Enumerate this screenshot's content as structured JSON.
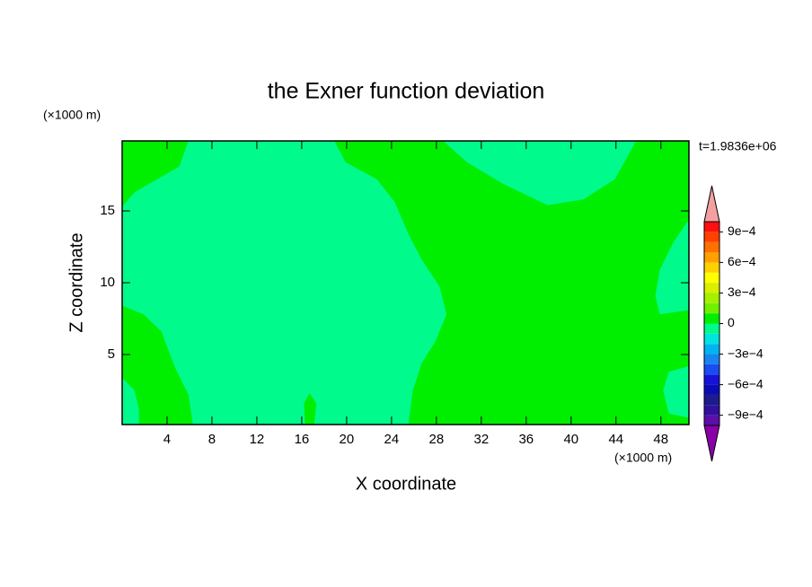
{
  "chart_data": {
    "type": "contour",
    "title": "the Exner function deviation",
    "x_label": "X coordinate",
    "y_label": "Z coordinate",
    "x_unit": "(×1000 m)",
    "y_unit": "(×1000 m)",
    "annotation": "t=1.9836e+06",
    "xlim": [
      0,
      50.5
    ],
    "ylim": [
      0.125,
      19.875
    ],
    "xticks": [
      4,
      8,
      12,
      16,
      20,
      24,
      28,
      32,
      36,
      40,
      44,
      48
    ],
    "yticks": [
      5,
      10,
      15
    ],
    "levels": [
      -0.001,
      -0.0009,
      -0.0008,
      -0.0007,
      -0.0006,
      -0.0005,
      -0.0004,
      -0.0003,
      -0.0002,
      -0.0001,
      0,
      0.0001,
      0.0002,
      0.0003,
      0.0004,
      0.0005,
      0.0006,
      0.0007,
      0.0008,
      0.0009,
      0.001
    ],
    "colors": [
      "#5a10a8",
      "#30109c",
      "#1c1c8c",
      "#0c0cb4",
      "#1414d8",
      "#1a4cf0",
      "#1a84f0",
      "#00b4f0",
      "#00e4e0",
      "#00fa8c",
      "#00ee00",
      "#70f000",
      "#a4f000",
      "#d8f000",
      "#ffff00",
      "#ffd000",
      "#ffa000",
      "#ff7000",
      "#ff4000",
      "#ff1010"
    ],
    "extend_colors": [
      "#8a00a8",
      "#f4a0a0"
    ],
    "colorbar_ticks": [
      {
        "value": -0.0009,
        "label": "−9e−4"
      },
      {
        "value": -0.0006,
        "label": "−6e−4"
      },
      {
        "value": -0.0003,
        "label": "−3e−4"
      },
      0,
      {
        "value": 0.0003,
        "label": "3e−4"
      },
      {
        "value": 0.0006,
        "label": "6e−4"
      },
      {
        "value": 0.0009,
        "label": "9e−4"
      }
    ],
    "background_range": [
      0,
      0.0001
    ],
    "regions": [
      {
        "range": [
          -0.0001,
          0
        ],
        "points": [
          [
            5.9,
            19.875
          ],
          [
            18.9,
            19.875
          ],
          [
            19.9,
            18.4
          ],
          [
            22.7,
            17.2
          ],
          [
            24.3,
            15.6
          ],
          [
            25.5,
            13.4
          ],
          [
            26.7,
            11.6
          ],
          [
            28.3,
            9.7
          ],
          [
            28.9,
            7.8
          ],
          [
            27.9,
            5.9
          ],
          [
            26.7,
            4.4
          ],
          [
            25.9,
            2.5
          ],
          [
            25.5,
            0.125
          ],
          [
            6.3,
            0.125
          ],
          [
            5.9,
            2.2
          ],
          [
            4.7,
            4.1
          ],
          [
            3.5,
            6.6
          ],
          [
            1.9,
            7.8
          ],
          [
            0,
            8.4
          ],
          [
            0,
            15.3
          ],
          [
            1.1,
            16.3
          ],
          [
            3.1,
            17.2
          ],
          [
            5.1,
            18.1
          ]
        ]
      },
      {
        "range": [
          -0.0001,
          0
        ],
        "points": [
          [
            0,
            3.4
          ],
          [
            1.1,
            2.5
          ],
          [
            1.5,
            1.2
          ],
          [
            1.5,
            0.125
          ],
          [
            0,
            0.125
          ]
        ]
      },
      {
        "range": [
          -0.0001,
          0
        ],
        "points": [
          [
            28.6,
            19.875
          ],
          [
            30.7,
            18.4
          ],
          [
            33.9,
            16.9
          ],
          [
            37.9,
            15.4
          ],
          [
            41.1,
            15.8
          ],
          [
            43.9,
            17.2
          ],
          [
            45.8,
            19.875
          ]
        ]
      },
      {
        "range": [
          -0.0001,
          0
        ],
        "points": [
          [
            50.5,
            14.4
          ],
          [
            49.1,
            12.8
          ],
          [
            47.9,
            10.9
          ],
          [
            47.5,
            9.1
          ],
          [
            47.9,
            7.8
          ],
          [
            50.5,
            8.1
          ]
        ]
      },
      {
        "range": [
          -0.0001,
          0
        ],
        "points": [
          [
            50.5,
            4.2
          ],
          [
            48.7,
            3.8
          ],
          [
            48.2,
            2.5
          ],
          [
            48.7,
            0.9
          ],
          [
            50.5,
            0.6
          ]
        ]
      },
      {
        "range": [
          0,
          0.0001
        ],
        "points": [
          [
            16.3,
            0.125
          ],
          [
            16.2,
            1.6
          ],
          [
            16.7,
            2.3
          ],
          [
            17.3,
            1.6
          ],
          [
            17.1,
            0.125
          ]
        ]
      }
    ]
  }
}
